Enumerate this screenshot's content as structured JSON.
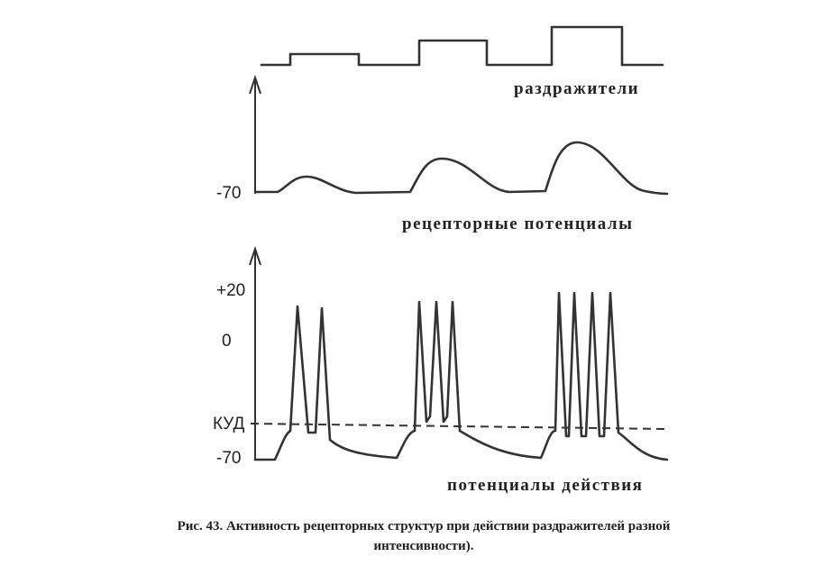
{
  "labels": {
    "stimuli": "раздражители",
    "receptor_potentials": "рецепторные потенциалы",
    "action_potentials": "потенциалы действия"
  },
  "axis_top": {
    "rest": "-70"
  },
  "axis_bottom": {
    "plus20": "+20",
    "zero": "0",
    "threshold": "КУД",
    "rest": "-70"
  },
  "caption": [
    "Рис. 43.  Активность рецепторных структур при действии раздражителей разной",
    "интенсивности)."
  ]
}
